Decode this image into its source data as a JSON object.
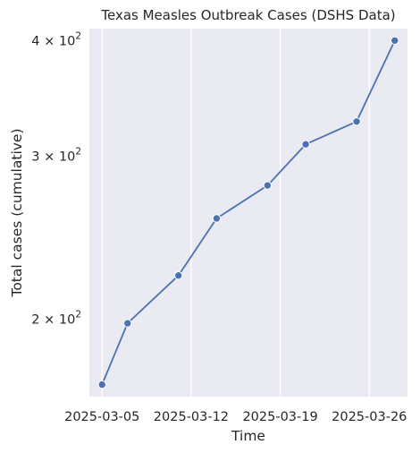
{
  "chart_data": {
    "type": "line",
    "title": "Texas Measles Outbreak Cases (DSHS Data)",
    "xlabel": "Time",
    "ylabel": "Total cases (cumulative)",
    "yscale": "log",
    "grid": true,
    "x_ticks": [
      "2025-03-05",
      "2025-03-12",
      "2025-03-19",
      "2025-03-26"
    ],
    "y_ticks": [
      {
        "value": 200,
        "base": "2",
        "exp": "2"
      },
      {
        "value": 300,
        "base": "3",
        "exp": "2"
      },
      {
        "value": 400,
        "base": "4",
        "exp": "2"
      }
    ],
    "xlim": [
      "2025-03-04",
      "2025-03-29"
    ],
    "ylim": [
      165,
      412
    ],
    "series": [
      {
        "color": "#4c72b0",
        "points": [
          {
            "x": "2025-03-05",
            "y": 170
          },
          {
            "x": "2025-03-07",
            "y": 198
          },
          {
            "x": "2025-03-11",
            "y": 223
          },
          {
            "x": "2025-03-14",
            "y": 257
          },
          {
            "x": "2025-03-18",
            "y": 279
          },
          {
            "x": "2025-03-21",
            "y": 309
          },
          {
            "x": "2025-03-25",
            "y": 327
          },
          {
            "x": "2025-03-28",
            "y": 400
          }
        ]
      }
    ]
  },
  "colors": {
    "plot_background": "#eaeaf2",
    "grid": "#ffffff",
    "line": "#4c72b0"
  }
}
